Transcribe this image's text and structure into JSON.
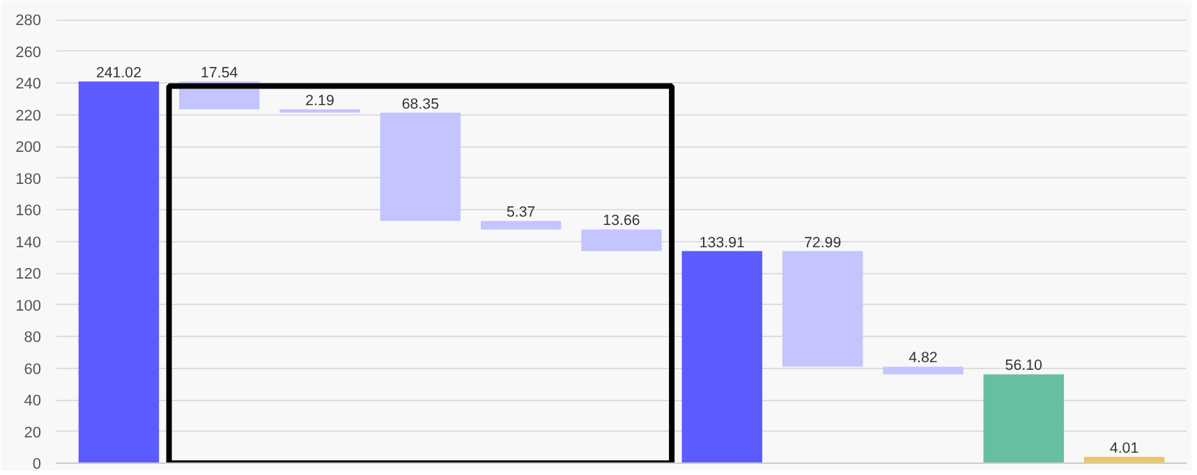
{
  "chart_data": {
    "type": "bar",
    "categories": [
      null,
      null,
      null,
      null,
      null,
      null,
      null,
      null,
      null,
      null,
      null
    ],
    "values": [
      241.02,
      17.54,
      2.19,
      68.35,
      5.37,
      13.66,
      133.91,
      72.99,
      4.82,
      56.1,
      4.01
    ],
    "base": [
      0,
      223.48,
      221.29,
      152.94,
      147.57,
      133.91,
      0,
      60.92,
      56.1,
      0,
      0
    ],
    "colors": [
      "#5b5bff",
      "#c4c4ff",
      "#c4c4ff",
      "#c4c4ff",
      "#c4c4ff",
      "#c4c4ff",
      "#5b5bff",
      "#c4c4ff",
      "#c4c4ff",
      "#66bfa3",
      "#e8c860"
    ],
    "value_labels": [
      "241.02",
      "17.54",
      "2.19",
      "68.35",
      "5.37",
      "13.66",
      "133.91",
      "72.99",
      "4.82",
      "56.10",
      "4.01"
    ],
    "ylim": [
      0,
      285
    ],
    "yticks": [
      0,
      20,
      40,
      60,
      80,
      100,
      120,
      140,
      160,
      180,
      200,
      220,
      240,
      260,
      280
    ],
    "grid": "y"
  }
}
